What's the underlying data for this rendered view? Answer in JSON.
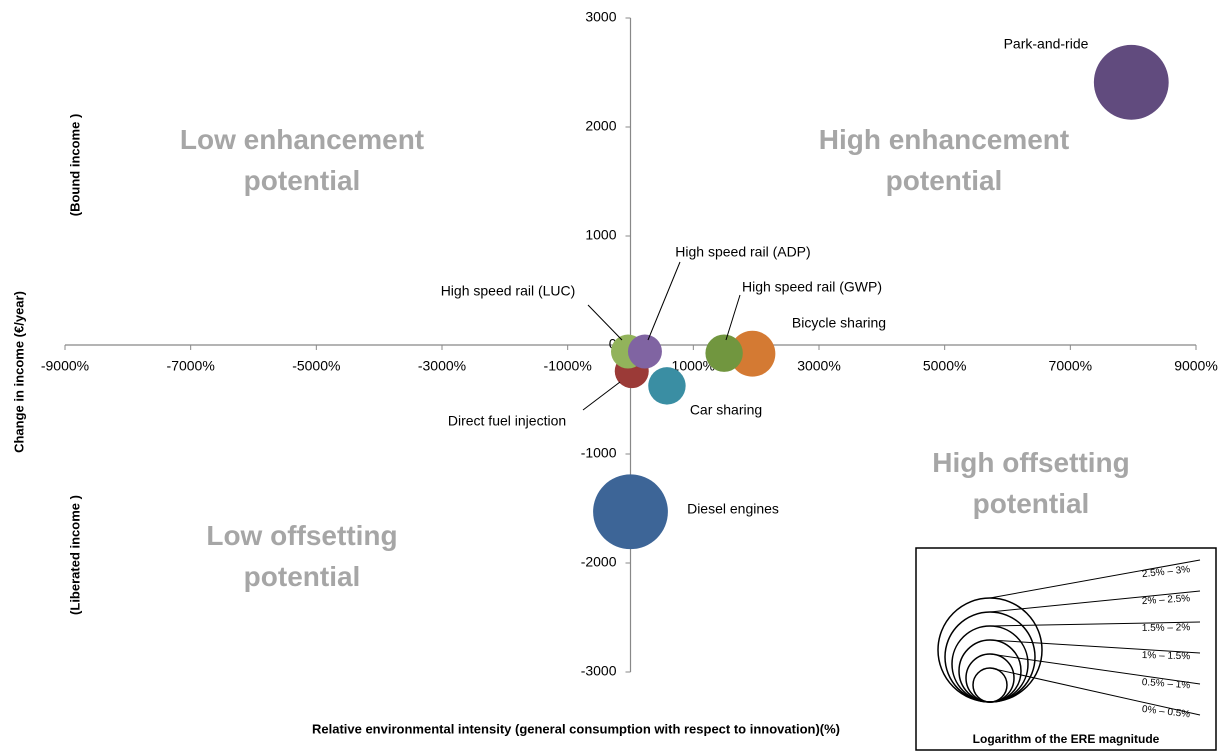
{
  "chart_data": {
    "type": "bubble",
    "x_label": "Relative environmental intensity (general consumption with respect to innovation)(%)",
    "y_label": "Change in income (€/year)",
    "y_label_top": "(Bound income )",
    "y_label_bottom": "(Liberated income )",
    "quadrant_labels": [
      "Low enhancement potential",
      "High enhancement potential",
      "Low offsetting potential",
      "High offsetting potential"
    ],
    "xlim": [
      -9000,
      9000
    ],
    "xticks": [
      {
        "value": -9000,
        "label": "-9000%"
      },
      {
        "value": -7000,
        "label": "-7000%"
      },
      {
        "value": -5000,
        "label": "-5000%"
      },
      {
        "value": -3000,
        "label": "-3000%"
      },
      {
        "value": -1000,
        "label": "-1000%"
      },
      {
        "value": 1000,
        "label": "1000%"
      },
      {
        "value": 3000,
        "label": "3000%"
      },
      {
        "value": 5000,
        "label": "5000%"
      },
      {
        "value": 7000,
        "label": "7000%"
      },
      {
        "value": 9000,
        "label": "9000%"
      }
    ],
    "ylim": [
      -3000,
      3000
    ],
    "yticks": [
      -3000,
      -2000,
      -1000,
      0,
      1000,
      2000,
      3000
    ],
    "points": [
      {
        "label": "Park-and-ride",
        "x": 7970,
        "y": 2410,
        "size": 2.2,
        "color": "#614b7e"
      },
      {
        "label": "Diesel engines",
        "x": 0,
        "y": -1530,
        "size": 2.2,
        "color": "#3d6597"
      },
      {
        "label": "Direct fuel injection",
        "x": 20,
        "y": -240,
        "size": 1.0,
        "color": "#9b3a37"
      },
      {
        "label": "Car sharing",
        "x": 580,
        "y": -375,
        "size": 1.1,
        "color": "#3a8ea3"
      },
      {
        "label": "Bicycle sharing",
        "x": 1940,
        "y": -80,
        "size": 1.35,
        "color": "#d47a33"
      },
      {
        "label": "High speed rail (LUC)",
        "x": -40,
        "y": -60,
        "size": 1.0,
        "color": "#92b35b"
      },
      {
        "label": "High speed rail (ADP)",
        "x": 230,
        "y": -60,
        "size": 1.0,
        "color": "#8064a2"
      },
      {
        "label": "High speed rail (GWP)",
        "x": 1490,
        "y": -75,
        "size": 1.1,
        "color": "#71963f"
      }
    ],
    "size_legend": {
      "title": "Logarithm  of the ERE magnitude",
      "items": [
        "2.5% – 3%",
        "2% – 2.5%",
        "1.5% – 2%",
        "1% – 1.5%",
        "0.5% – 1%",
        "0% – 0.5%"
      ]
    }
  }
}
